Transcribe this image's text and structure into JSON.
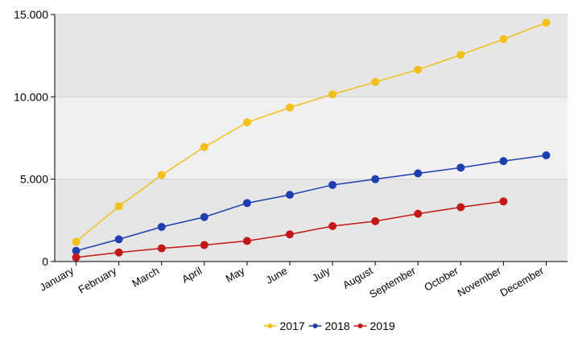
{
  "chart_data": {
    "type": "line",
    "categories": [
      "January",
      "February",
      "March",
      "April",
      "May",
      "June",
      "July",
      "August",
      "September",
      "October",
      "November",
      "December"
    ],
    "series": [
      {
        "name": "2017",
        "color": "#f2c01a",
        "values": [
          1200,
          3350,
          5250,
          6950,
          8450,
          9350,
          10150,
          10900,
          11650,
          12550,
          13500,
          14500
        ]
      },
      {
        "name": "2018",
        "color": "#1f3fb0",
        "values": [
          650,
          1350,
          2100,
          2700,
          3550,
          4050,
          4650,
          5000,
          5350,
          5700,
          6100,
          6450
        ]
      },
      {
        "name": "2019",
        "color": "#c41818",
        "values": [
          250,
          550,
          800,
          1000,
          1250,
          1650,
          2150,
          2450,
          2900,
          3300,
          3650,
          null
        ]
      }
    ],
    "y_ticks": [
      {
        "value": 0,
        "label": "0"
      },
      {
        "value": 5000,
        "label": "5.000"
      },
      {
        "value": 10000,
        "label": "10.000"
      },
      {
        "value": 15000,
        "label": "15.000"
      }
    ],
    "ylim": [
      0,
      15000
    ],
    "bands": [
      "#e6e6e6",
      "#f0f0f0",
      "#e6e6e6"
    ],
    "legend_position": "bottom-center",
    "grid": true
  }
}
